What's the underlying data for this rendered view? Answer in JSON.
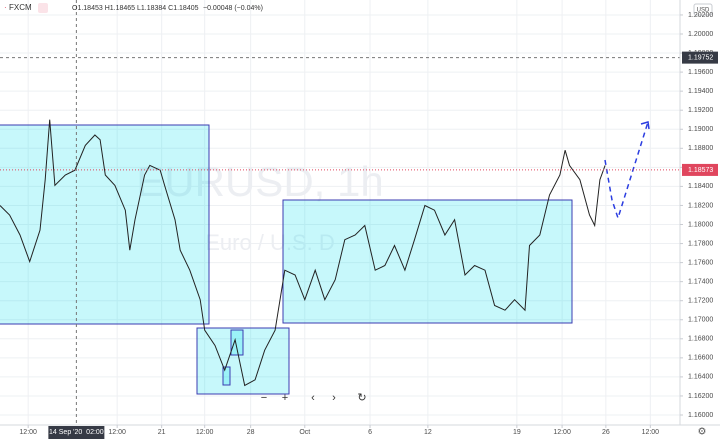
{
  "chart_data": {
    "type": "line",
    "header": {
      "exchange": "FXCM",
      "ohlc": "O1.18453 H1.18465 L1.18384 C1.18405",
      "change": "−0.00048 (−0.04%)"
    },
    "watermark": {
      "symbol": "EURUSD, 1h",
      "description": "Euro / U.S. D"
    },
    "currency": "USD",
    "color": "#222222",
    "x": [
      0,
      13,
      27,
      40,
      54,
      61,
      67,
      74,
      88,
      101,
      115,
      128,
      135,
      142,
      155,
      169,
      175,
      182,
      195,
      202,
      216,
      222,
      236,
      243,
      256,
      270,
      276,
      290,
      303,
      317,
      330,
      344,
      357,
      371,
      384,
      398,
      411,
      425,
      438,
      452,
      465,
      479,
      492,
      506,
      519,
      532,
      546,
      559,
      573,
      586,
      600,
      613,
      627,
      640,
      654,
      667,
      681,
      694,
      708,
      714,
      728,
      741,
      755,
      762,
      768,
      782,
      795,
      802,
      809,
      816
    ],
    "values": [
      1.182,
      1.181,
      1.1789,
      1.1761,
      1.1794,
      1.1847,
      1.191,
      1.1841,
      1.1852,
      1.1857,
      1.1883,
      1.1894,
      1.1889,
      1.1852,
      1.1841,
      1.1815,
      1.1773,
      1.1805,
      1.1852,
      1.1862,
      1.1857,
      1.1841,
      1.1805,
      1.1773,
      1.1752,
      1.1721,
      1.1689,
      1.1673,
      1.1647,
      1.1679,
      1.1631,
      1.1637,
      1.1668,
      1.1689,
      1.1752,
      1.1747,
      1.1721,
      1.1752,
      1.1721,
      1.1742,
      1.1784,
      1.1789,
      1.1799,
      1.1752,
      1.1757,
      1.1778,
      1.1752,
      1.1784,
      1.182,
      1.1815,
      1.1789,
      1.1805,
      1.1747,
      1.1757,
      1.1752,
      1.1715,
      1.171,
      1.1721,
      1.171,
      1.1778,
      1.1789,
      1.1831,
      1.1852,
      1.1878,
      1.1862,
      1.1847,
      1.181,
      1.1799,
      1.1847,
      1.1862
    ],
    "xlim": [
      0,
      917
    ],
    "ylim": [
      1.15895,
      1.20357
    ],
    "xticks": [
      {
        "value": 38,
        "label": "12:00"
      },
      {
        "value": 158,
        "label": "12:00"
      },
      {
        "value": 218,
        "label": "21"
      },
      {
        "value": 276,
        "label": "12:00"
      },
      {
        "value": 338,
        "label": "28"
      },
      {
        "value": 411,
        "label": "Oct"
      },
      {
        "value": 499,
        "label": "6"
      },
      {
        "value": 577,
        "label": "12"
      },
      {
        "value": 697,
        "label": "19"
      },
      {
        "value": 758,
        "label": "12:00"
      },
      {
        "value": 817,
        "label": "26"
      },
      {
        "value": 877,
        "label": "12:00"
      }
    ],
    "yticks": [
      {
        "value": 1.16,
        "label": "1.16000"
      },
      {
        "value": 1.162,
        "label": "1.16200"
      },
      {
        "value": 1.164,
        "label": "1.16400"
      },
      {
        "value": 1.166,
        "label": "1.16600"
      },
      {
        "value": 1.168,
        "label": "1.16800"
      },
      {
        "value": 1.17,
        "label": "1.17000"
      },
      {
        "value": 1.172,
        "label": "1.17200"
      },
      {
        "value": 1.174,
        "label": "1.17400"
      },
      {
        "value": 1.176,
        "label": "1.17600"
      },
      {
        "value": 1.178,
        "label": "1.17800"
      },
      {
        "value": 1.18,
        "label": "1.18000"
      },
      {
        "value": 1.182,
        "label": "1.18200"
      },
      {
        "value": 1.184,
        "label": "1.18400"
      },
      {
        "value": 1.186,
        "label": "1.18600"
      },
      {
        "value": 1.188,
        "label": "1.18800"
      },
      {
        "value": 1.19,
        "label": "1.19000"
      },
      {
        "value": 1.192,
        "label": "1.19200"
      },
      {
        "value": 1.194,
        "label": "1.19400"
      },
      {
        "value": 1.196,
        "label": "1.19600"
      },
      {
        "value": 1.198,
        "label": "1.19800"
      },
      {
        "value": 1.2,
        "label": "1.20000"
      },
      {
        "value": 1.202,
        "label": "1.20200"
      }
    ],
    "grid": true,
    "last_price": 1.18573,
    "crosshair": {
      "x": 103,
      "x_label": "14 Sep '20  02:00",
      "y": 1.19752
    }
  }
}
